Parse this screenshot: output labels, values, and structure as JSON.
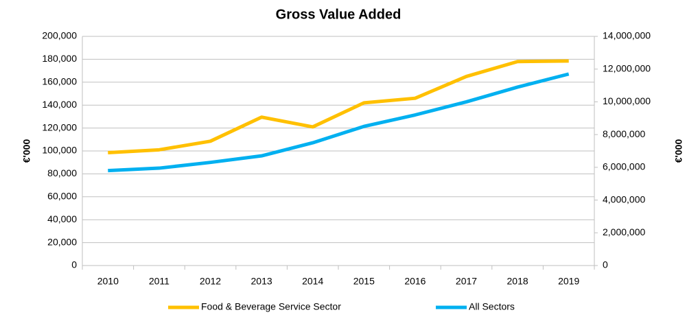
{
  "chart_data": {
    "type": "line",
    "title": "Gross Value Added",
    "y_label": "€'000",
    "y2_label": "€'000",
    "categories": [
      "2010",
      "2011",
      "2012",
      "2013",
      "2014",
      "2015",
      "2016",
      "2017",
      "2018",
      "2019"
    ],
    "series": [
      {
        "name": "Food & Beverage Service Sector",
        "color": "#ffc000",
        "values": [
          98500,
          101000,
          108500,
          129500,
          121000,
          142000,
          146000,
          165000,
          178000,
          178500
        ]
      },
      {
        "name": "All Sectors",
        "color": "#00b0f0",
        "axis": "y2",
        "values": [
          5800000,
          5950000,
          6300000,
          6700000,
          7500000,
          8500000,
          9200000,
          10000000,
          10900000,
          11700000
        ]
      }
    ],
    "ylim": [
      0,
      200000
    ],
    "yticks": [
      0,
      {
        "value": 20000,
        "label": "20,000"
      },
      {
        "value": 40000,
        "label": "40,000"
      },
      {
        "value": 60000,
        "label": "60,000"
      },
      {
        "value": 80000,
        "label": "80,000"
      },
      {
        "value": 100000,
        "label": "100,000"
      },
      {
        "value": 120000,
        "label": "120,000"
      },
      {
        "value": 140000,
        "label": "140,000"
      },
      {
        "value": 160000,
        "label": "160,000"
      },
      {
        "value": 180000,
        "label": "180,000"
      },
      {
        "value": 200000,
        "label": "200,000"
      }
    ],
    "y2lim": [
      0,
      14000000
    ],
    "y2ticks": [
      0,
      {
        "value": 2000000,
        "label": "2,000,000"
      },
      {
        "value": 4000000,
        "label": "4,000,000"
      },
      {
        "value": 6000000,
        "label": "6,000,000"
      },
      {
        "value": 8000000,
        "label": "8,000,000"
      },
      {
        "value": 10000000,
        "label": "10,000,000"
      },
      {
        "value": 12000000,
        "label": "12,000,000"
      },
      {
        "value": 14000000,
        "label": "14,000,000"
      }
    ],
    "grid": true,
    "legend": "bottom"
  }
}
